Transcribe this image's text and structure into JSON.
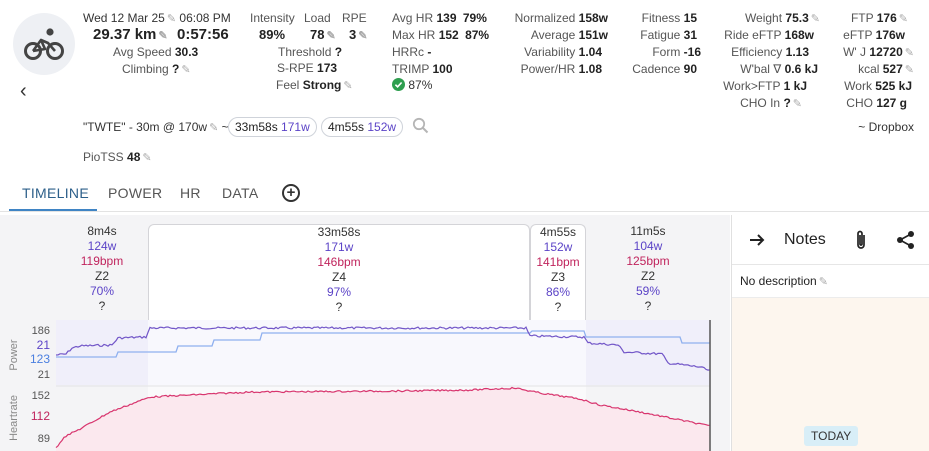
{
  "activity": {
    "date": "Wed 12 Mar 25",
    "time": "06:08 PM",
    "distance": "29.37 km",
    "duration": "0:57:56",
    "avg_speed_label": "Avg Speed",
    "avg_speed": "30.3",
    "climbing_label": "Climbing",
    "climbing": "?"
  },
  "stats_a": {
    "intensity_label": "Intensity",
    "intensity": "89%",
    "load_label": "Load",
    "load": "78",
    "rpe_label": "RPE",
    "rpe": "3",
    "threshold_label": "Threshold",
    "threshold": "?",
    "srpe_label": "S-RPE",
    "srpe": "173",
    "feel_label": "Feel",
    "feel": "Strong"
  },
  "stats_b": {
    "avghr_label": "Avg HR",
    "avghr": "139",
    "avghr_pct": "79%",
    "maxhr_label": "Max HR",
    "maxhr": "152",
    "maxhr_pct": "87%",
    "hrrc_label": "HRRc",
    "hrrc": "-",
    "trimp_label": "TRIMP",
    "trimp": "100",
    "check_pct": "87%"
  },
  "stats_c": {
    "normalized_label": "Normalized",
    "normalized": "158w",
    "average_label": "Average",
    "average": "151w",
    "variability_label": "Variability",
    "variability": "1.04",
    "powerhr_label": "Power/HR",
    "powerhr": "1.08"
  },
  "stats_d": {
    "fitness_label": "Fitness",
    "fitness": "15",
    "fatigue_label": "Fatigue",
    "fatigue": "31",
    "form_label": "Form",
    "form": "-16",
    "cadence_label": "Cadence",
    "cadence": "90"
  },
  "stats_e": {
    "weight_label": "Weight",
    "weight": "75.3",
    "ride_eftp_label": "Ride eFTP",
    "ride_eftp": "168w",
    "efficiency_label": "Efficiency",
    "efficiency": "1.13",
    "wbal_label": "W'bal ∇",
    "wbal": "0.6 kJ",
    "work_ftp_label": "Work>FTP",
    "work_ftp": "1 kJ",
    "cho_in_label": "CHO In",
    "cho_in": "?"
  },
  "stats_f": {
    "ftp_label": "FTP",
    "ftp": "176",
    "eftp_label": "eFTP",
    "eftp": "176w",
    "wj_label": "W' J",
    "wj": "12720",
    "kcal_label": "kcal",
    "kcal": "527",
    "work_label": "Work",
    "work": "525 kJ",
    "cho_label": "CHO",
    "cho": "127 g"
  },
  "workout": {
    "name": "\"TWTE\" - 30m @ 170w",
    "tilde": "~",
    "interval1_time": "33m58s",
    "interval1_power": "171w",
    "interval2_time": "4m55s",
    "interval2_power": "152w",
    "source": "~ Dropbox"
  },
  "piotss": {
    "label": "PioTSS",
    "value": "48"
  },
  "tabs": [
    "TIMELINE",
    "POWER",
    "HR",
    "DATA"
  ],
  "segments": [
    {
      "duration": "8m4s",
      "power": "124w",
      "hr": "119bpm",
      "zone": "Z2",
      "pct": "70%",
      "q": "?"
    },
    {
      "duration": "33m58s",
      "power": "171w",
      "hr": "146bpm",
      "zone": "Z4",
      "pct": "97%",
      "q": "?"
    },
    {
      "duration": "4m55s",
      "power": "152w",
      "hr": "141bpm",
      "zone": "Z3",
      "pct": "86%",
      "q": "?"
    },
    {
      "duration": "11m5s",
      "power": "104w",
      "hr": "125bpm",
      "zone": "Z2",
      "pct": "59%",
      "q": "?"
    }
  ],
  "chart": {
    "power_axis_label": "Power",
    "power_ticks": [
      "186",
      "21",
      "123",
      "21"
    ],
    "hr_axis_label": "Heartrate",
    "hr_ticks": [
      "152",
      "112",
      "89"
    ]
  },
  "notes": {
    "title": "Notes",
    "description": "No description",
    "today": "TODAY"
  },
  "colors": {
    "power": "#7256c8",
    "ftp_line": "#8fb0ef",
    "hr": "#d8356e",
    "accent": "#3f84c4"
  }
}
